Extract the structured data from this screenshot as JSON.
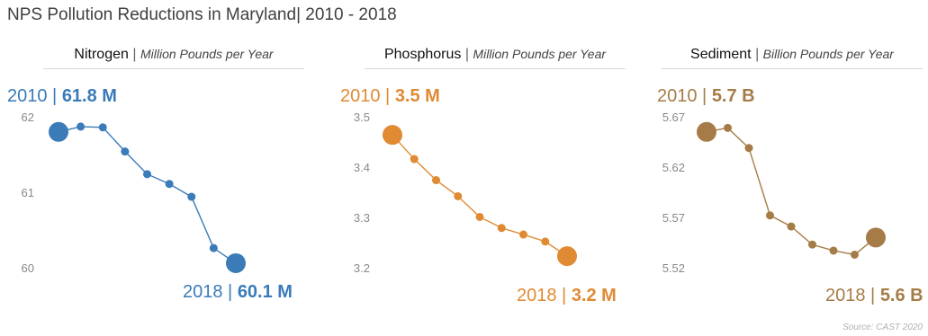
{
  "header": {
    "title_main": "NPS Pollution Reductions in Maryland",
    "title_range": "| 2010 - 2018"
  },
  "source": "Source: CAST 2020",
  "colors": {
    "nitrogen": "#3a7bb8",
    "phosphorus": "#e08a33",
    "sediment": "#a57c47"
  },
  "chart_data": [
    {
      "type": "line",
      "name": "Nitrogen",
      "unit": "Million Pounds per Year",
      "x": [
        2010,
        2011,
        2012,
        2013,
        2014,
        2015,
        2016,
        2017,
        2018
      ],
      "values": [
        61.8,
        61.87,
        61.86,
        61.54,
        61.24,
        61.11,
        60.94,
        60.26,
        60.06
      ],
      "ylim": [
        60,
        62
      ],
      "yticks": [
        "62",
        "61",
        "60"
      ],
      "start": {
        "year": "2010",
        "label": "61.8 M"
      },
      "end": {
        "year": "2018",
        "label": "60.1 M"
      }
    },
    {
      "type": "line",
      "name": "Phosphorus",
      "unit": "Million Pounds per Year",
      "x": [
        2010,
        2011,
        2012,
        2013,
        2014,
        2015,
        2016,
        2017,
        2018
      ],
      "values": [
        3.464,
        3.416,
        3.374,
        3.342,
        3.301,
        3.279,
        3.266,
        3.252,
        3.223
      ],
      "ylim": [
        3.2,
        3.5
      ],
      "yticks": [
        "3.5",
        "3.4",
        "3.3",
        "3.2"
      ],
      "start": {
        "year": "2010",
        "label": "3.5 M"
      },
      "end": {
        "year": "2018",
        "label": "3.2 M"
      }
    },
    {
      "type": "line",
      "name": "Sediment",
      "unit": "Billion Pounds per Year",
      "x": [
        2010,
        2011,
        2012,
        2013,
        2014,
        2015,
        2016,
        2017,
        2018
      ],
      "values": [
        5.655,
        5.659,
        5.639,
        5.572,
        5.561,
        5.543,
        5.537,
        5.533,
        5.55
      ],
      "ylim": [
        5.52,
        5.67
      ],
      "yticks": [
        "5.67",
        "5.62",
        "5.57",
        "5.52"
      ],
      "start": {
        "year": "2010",
        "label": "5.7 B"
      },
      "end": {
        "year": "2018",
        "label": "5.6 B"
      }
    }
  ]
}
